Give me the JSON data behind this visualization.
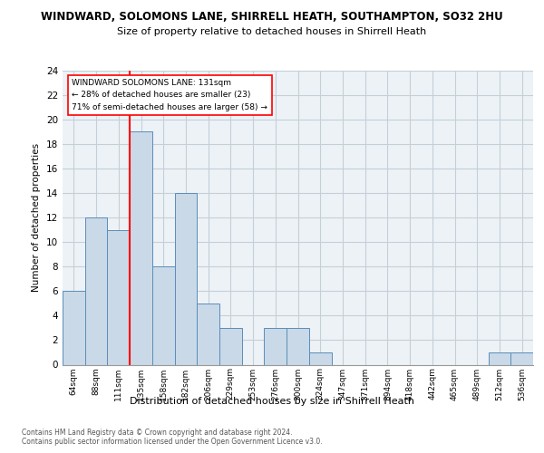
{
  "title_line1": "WINDWARD, SOLOMONS LANE, SHIRRELL HEATH, SOUTHAMPTON, SO32 2HU",
  "title_line2": "Size of property relative to detached houses in Shirrell Heath",
  "xlabel": "Distribution of detached houses by size in Shirrell Heath",
  "ylabel": "Number of detached properties",
  "categories": [
    "64sqm",
    "88sqm",
    "111sqm",
    "135sqm",
    "158sqm",
    "182sqm",
    "206sqm",
    "229sqm",
    "253sqm",
    "276sqm",
    "300sqm",
    "324sqm",
    "347sqm",
    "371sqm",
    "394sqm",
    "418sqm",
    "442sqm",
    "465sqm",
    "489sqm",
    "512sqm",
    "536sqm"
  ],
  "values": [
    6,
    12,
    11,
    19,
    8,
    14,
    5,
    3,
    0,
    3,
    3,
    1,
    0,
    0,
    0,
    0,
    0,
    0,
    0,
    1,
    1
  ],
  "bar_color": "#c9d9e8",
  "bar_edge_color": "#5b8db8",
  "red_line_index": 3,
  "red_line_label": "WINDWARD SOLOMONS LANE: 131sqm",
  "annotation_line2": "← 28% of detached houses are smaller (23)",
  "annotation_line3": "71% of semi-detached houses are larger (58) →",
  "ylim": [
    0,
    24
  ],
  "yticks": [
    0,
    2,
    4,
    6,
    8,
    10,
    12,
    14,
    16,
    18,
    20,
    22,
    24
  ],
  "footer1": "Contains HM Land Registry data © Crown copyright and database right 2024.",
  "footer2": "Contains public sector information licensed under the Open Government Licence v3.0.",
  "bg_color": "#edf2f7",
  "grid_color": "#c5cfd8"
}
